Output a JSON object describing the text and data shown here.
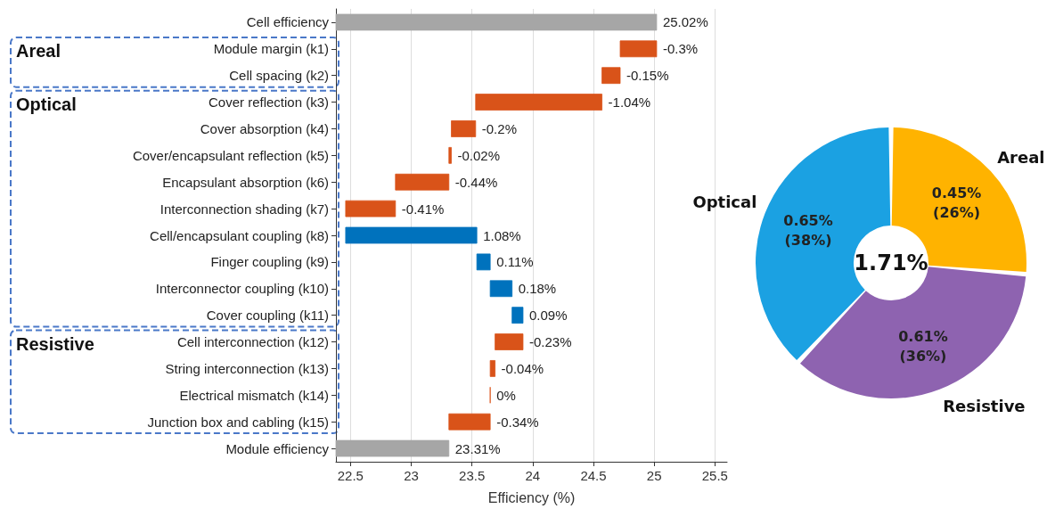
{
  "chart_data": [
    {
      "type": "bar",
      "orientation": "horizontal",
      "categories": [
        "Cell efficiency",
        "Module margin (k1)",
        "Cell spacing (k2)",
        "Cover reflection (k3)",
        "Cover absorption (k4)",
        "Cover/encapsulant reflection (k5)",
        "Encapsulant absorption (k6)",
        "Interconnection shading (k7)",
        "Cell/encapsulant coupling (k8)",
        "Finger coupling (k9)",
        "Interconnector coupling (k10)",
        "Cover coupling (k11)",
        "Cell interconnection (k12)",
        "String interconnection (k13)",
        "Electrical mismatch (k14)",
        "Junction box and cabling (k15)",
        "Module efficiency"
      ],
      "values": [
        25.02,
        -0.3,
        -0.15,
        -1.04,
        -0.2,
        -0.02,
        -0.44,
        -0.41,
        1.08,
        0.11,
        0.18,
        0.09,
        -0.23,
        -0.04,
        0,
        -0.34,
        23.31
      ],
      "base": [
        null,
        25.02,
        24.72,
        24.57,
        23.53,
        23.33,
        23.31,
        22.87,
        22.46,
        23.54,
        23.65,
        23.83,
        23.92,
        23.69,
        23.65,
        23.65,
        null
      ],
      "colors": [
        "#a6a6a6",
        "#d95319",
        "#d95319",
        "#d95319",
        "#d95319",
        "#d95319",
        "#d95319",
        "#d95319",
        "#0072bd",
        "#0072bd",
        "#0072bd",
        "#0072bd",
        "#d95319",
        "#d95319",
        "#d95319",
        "#d95319",
        "#a6a6a6"
      ],
      "value_labels": [
        "25.02%",
        "-0.3%",
        "-0.15%",
        "-1.04%",
        "-0.2%",
        "-0.02%",
        "-0.44%",
        "-0.41%",
        "1.08%",
        "0.11%",
        "0.18%",
        "0.09%",
        "-0.23%",
        "-0.04%",
        "0%",
        "-0.34%",
        "23.31%"
      ],
      "xlabel": "Efficiency (%)",
      "xlim": [
        22.38,
        25.6
      ],
      "xticks": [
        22.5,
        23,
        23.5,
        24,
        24.5,
        25,
        25.5
      ],
      "grid": "x",
      "annotations": [
        "Areal",
        "Optical",
        "Resistive"
      ]
    },
    {
      "type": "donut",
      "categories": [
        "Areal",
        "Resistive",
        "Optical"
      ],
      "values": [
        0.45,
        0.61,
        0.65
      ],
      "colors": [
        "#ffb300",
        "#8e63b0",
        "#1ba1e2"
      ],
      "value_labels": [
        "0.45%\n(26%)",
        "0.61%\n(36%)",
        "0.65%\n(38%)"
      ],
      "annotations": [
        "1.71%"
      ]
    }
  ]
}
